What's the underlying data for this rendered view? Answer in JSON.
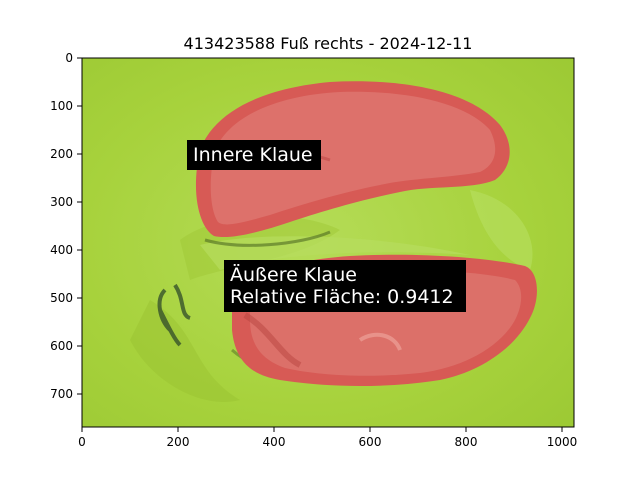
{
  "figure": {
    "title": "413423588 Fuß rechts - 2024-12-11",
    "x_ticks": [
      "0",
      "200",
      "400",
      "600",
      "800",
      "1000"
    ],
    "y_ticks": [
      "0",
      "100",
      "200",
      "300",
      "400",
      "500",
      "600",
      "700"
    ],
    "annotations": {
      "inner_claw": "Innere Klaue",
      "outer_claw": "Äußere Klaue",
      "relative_area": "Relative Fläche: 0.9412"
    },
    "colors": {
      "background_mat": "#a6d23a",
      "claw_overlay": "#d75a55",
      "label_box": "#000000"
    }
  }
}
